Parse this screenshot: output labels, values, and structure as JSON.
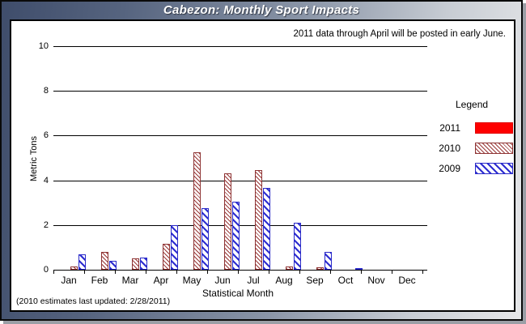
{
  "window": {
    "title": "Cabezon: Monthly Sport Impacts"
  },
  "panel": {
    "note": "2011 data through April will be posted in early June.",
    "footnote": "(2010 estimates last updated: 2/28/2011)"
  },
  "legend": {
    "title": "Legend"
  },
  "chart_data": {
    "type": "bar",
    "title": "Cabezon: Monthly Sport Impacts",
    "xlabel": "Statistical Month",
    "ylabel": "Metric Tons",
    "ylim": [
      0,
      10
    ],
    "yticks": [
      0,
      2,
      4,
      6,
      8,
      10
    ],
    "grid": "horizontal",
    "legend_position": "right",
    "categories": [
      "Jan",
      "Feb",
      "Mar",
      "Apr",
      "May",
      "Jun",
      "Jul",
      "Aug",
      "Sep",
      "Oct",
      "Nov",
      "Dec"
    ],
    "series": [
      {
        "name": "2011",
        "color": "#fe0000",
        "hatch": "solid",
        "values": [
          0,
          0,
          0,
          0,
          0,
          0,
          0,
          0,
          0,
          0,
          0,
          0
        ]
      },
      {
        "name": "2010",
        "color": "#8e3434",
        "hatch": "thin-diagonal",
        "values": [
          0.15,
          0.8,
          0.5,
          1.15,
          5.25,
          4.3,
          4.45,
          0.15,
          0.1,
          0,
          0,
          0
        ]
      },
      {
        "name": "2009",
        "color": "#2a2ac8",
        "hatch": "wide-diagonal",
        "values": [
          0.7,
          0.4,
          0.55,
          2.0,
          2.75,
          3.05,
          3.65,
          2.1,
          0.8,
          0.07,
          0,
          0
        ]
      }
    ]
  }
}
